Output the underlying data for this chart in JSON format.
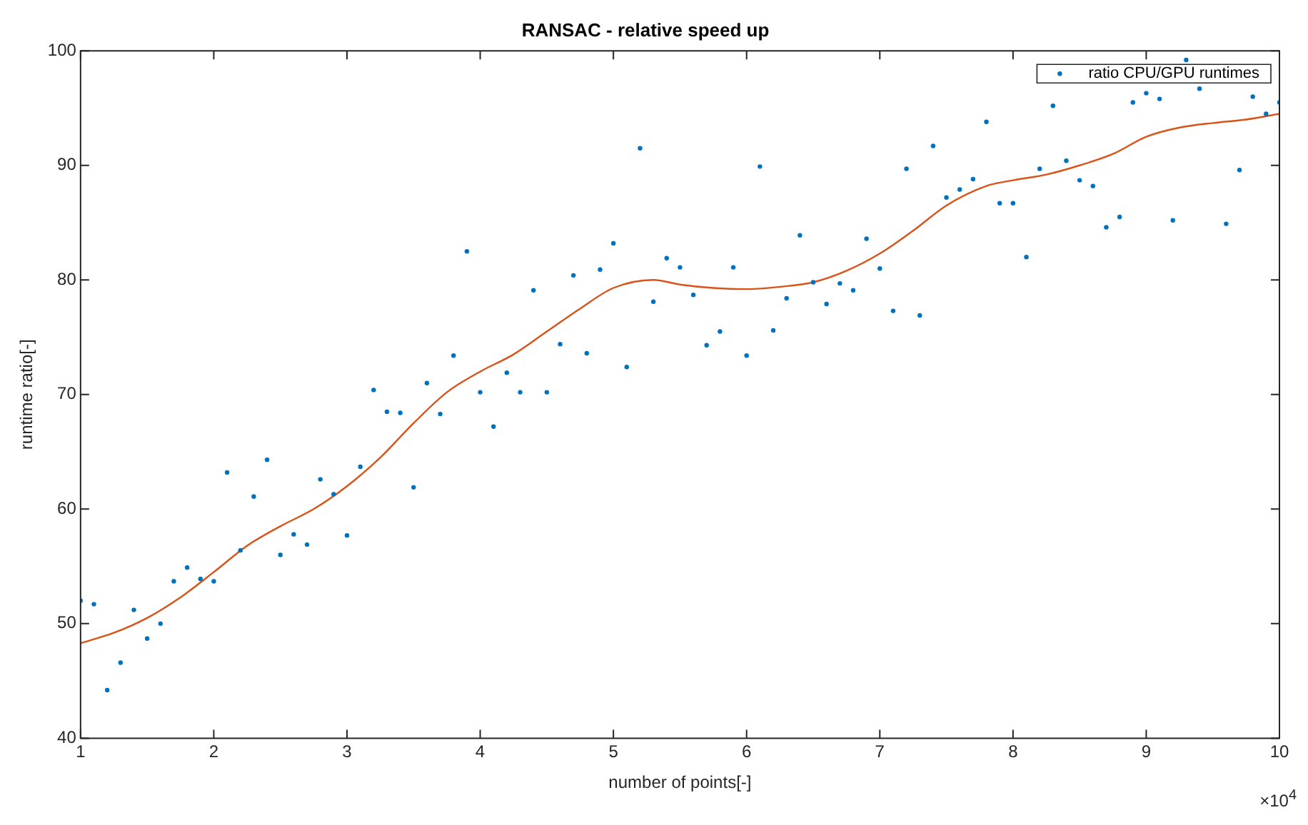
{
  "chart_data": {
    "type": "scatter",
    "title": "RANSAC - relative speed up",
    "xlabel": "number of points[-]",
    "ylabel": "runtime ratio[-]",
    "x": [
      1.0,
      1.1,
      1.2,
      1.3,
      1.4,
      1.5,
      1.6,
      1.7,
      1.8,
      1.9,
      2.0,
      2.1,
      2.2,
      2.3,
      2.4,
      2.5,
      2.6,
      2.7,
      2.8,
      2.9,
      3.0,
      3.1,
      3.2,
      3.3,
      3.4,
      3.5,
      3.6,
      3.7,
      3.8,
      3.9,
      4.0,
      4.1,
      4.2,
      4.3,
      4.4,
      4.5,
      4.6,
      4.7,
      4.8,
      4.9,
      5.0,
      5.1,
      5.2,
      5.3,
      5.4,
      5.5,
      5.6,
      5.7,
      5.8,
      5.9,
      6.0,
      6.1,
      6.2,
      6.3,
      6.4,
      6.5,
      6.6,
      6.7,
      6.8,
      6.9,
      7.0,
      7.1,
      7.2,
      7.3,
      7.4,
      7.5,
      7.6,
      7.7,
      7.8,
      7.9,
      8.0,
      8.1,
      8.2,
      8.3,
      8.4,
      8.5,
      8.6,
      8.7,
      8.8,
      8.9,
      9.0,
      9.1,
      9.2,
      9.3,
      9.4,
      9.5,
      9.6,
      9.7,
      9.8,
      9.9,
      10.0
    ],
    "series": [
      {
        "name": "ratio CPU/GPU runtimes",
        "color": "#0072bd",
        "marker": "circle",
        "values": [
          52.0,
          51.7,
          44.2,
          46.6,
          51.2,
          48.7,
          50.0,
          53.7,
          54.9,
          53.9,
          53.7,
          63.2,
          56.4,
          61.1,
          64.3,
          56.0,
          57.8,
          56.9,
          62.6,
          61.3,
          57.7,
          63.7,
          70.4,
          68.5,
          68.4,
          61.9,
          71.0,
          68.3,
          73.4,
          82.5,
          70.2,
          67.2,
          71.9,
          70.2,
          79.1,
          70.2,
          74.4,
          80.4,
          73.6,
          80.9,
          83.2,
          72.4,
          91.5,
          78.1,
          81.9,
          81.1,
          78.7,
          74.3,
          75.5,
          81.1,
          73.4,
          89.9,
          75.6,
          78.4,
          83.9,
          79.8,
          77.9,
          79.7,
          79.1,
          83.6,
          81.0,
          77.3,
          89.7,
          76.9,
          91.7,
          87.2,
          87.9,
          88.8,
          93.8,
          86.7,
          86.7,
          82.0,
          89.7,
          95.2,
          90.4,
          88.7,
          88.2,
          84.6,
          85.5,
          95.5,
          96.3,
          95.8,
          85.2,
          99.2,
          96.7,
          null,
          84.9,
          89.6,
          96.0,
          94.5,
          95.5
        ]
      },
      {
        "type": "line",
        "color": "#d95319",
        "marker": "none",
        "line_style": "solid",
        "x": [
          1.0,
          1.25,
          1.5,
          1.75,
          2.0,
          2.25,
          2.5,
          2.75,
          3.0,
          3.25,
          3.5,
          3.75,
          4.0,
          4.25,
          4.5,
          4.75,
          5.0,
          5.3,
          5.5,
          5.75,
          6.0,
          6.25,
          6.5,
          6.75,
          7.0,
          7.25,
          7.5,
          7.8,
          8.0,
          8.25,
          8.5,
          8.75,
          9.0,
          9.25,
          9.5,
          9.75,
          10.0
        ],
        "values": [
          48.3,
          49.2,
          50.5,
          52.3,
          54.5,
          56.8,
          58.5,
          60.0,
          62.0,
          64.5,
          67.5,
          70.2,
          72.0,
          73.5,
          75.5,
          77.5,
          79.3,
          80.0,
          79.6,
          79.3,
          79.2,
          79.4,
          79.8,
          80.8,
          82.3,
          84.3,
          86.5,
          88.2,
          88.7,
          89.2,
          90.0,
          91.0,
          92.5,
          93.3,
          93.7,
          94.0,
          94.5
        ]
      }
    ],
    "xlim": [
      1,
      10
    ],
    "xticks": [
      1,
      2,
      3,
      4,
      5,
      6,
      7,
      8,
      9,
      10
    ],
    "ylim": [
      40,
      100
    ],
    "yticks": [
      40,
      50,
      60,
      70,
      80,
      90,
      100
    ],
    "grid": false,
    "legend": "top right",
    "annotations": [
      "×10$^{4}$"
    ]
  }
}
